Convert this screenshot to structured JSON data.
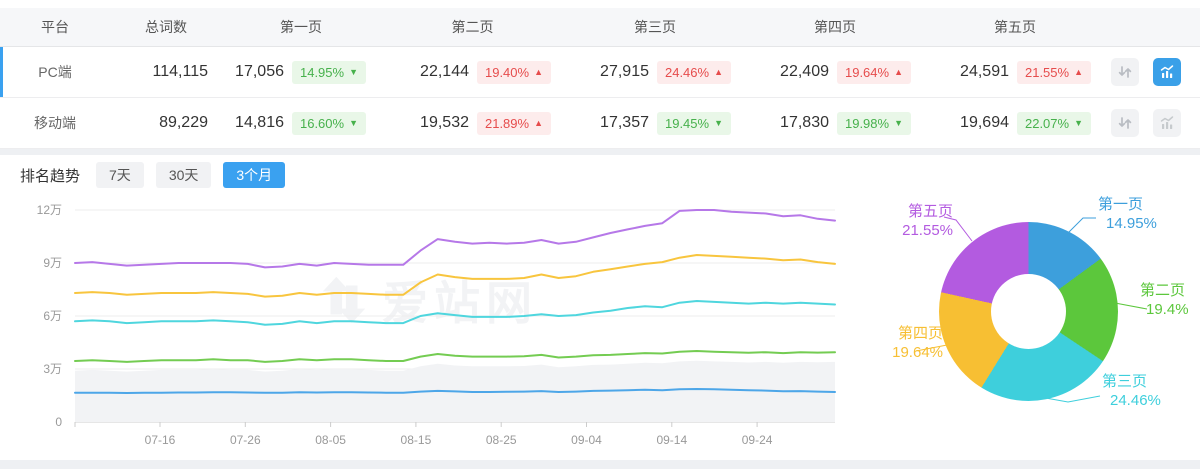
{
  "table": {
    "columns": [
      "平台",
      "总词数",
      "第一页",
      "第二页",
      "第三页",
      "第四页",
      "第五页"
    ],
    "rows": [
      {
        "platform": "PC端",
        "total": "114,115",
        "selected": true,
        "chart_active": true,
        "pages": [
          {
            "count": "17,056",
            "pct": "14.95%",
            "dir": "down"
          },
          {
            "count": "22,144",
            "pct": "19.40%",
            "dir": "up"
          },
          {
            "count": "27,915",
            "pct": "24.46%",
            "dir": "up"
          },
          {
            "count": "22,409",
            "pct": "19.64%",
            "dir": "up"
          },
          {
            "count": "24,591",
            "pct": "21.55%",
            "dir": "up"
          }
        ]
      },
      {
        "platform": "移动端",
        "total": "89,229",
        "selected": false,
        "chart_active": false,
        "pages": [
          {
            "count": "14,816",
            "pct": "16.60%",
            "dir": "down"
          },
          {
            "count": "19,532",
            "pct": "21.89%",
            "dir": "up"
          },
          {
            "count": "17,357",
            "pct": "19.45%",
            "dir": "down"
          },
          {
            "count": "17,830",
            "pct": "19.98%",
            "dir": "down"
          },
          {
            "count": "19,694",
            "pct": "22.07%",
            "dir": "down"
          }
        ]
      }
    ]
  },
  "trend": {
    "label": "排名趋势",
    "tabs": [
      {
        "label": "7天",
        "active": false
      },
      {
        "label": "30天",
        "active": false
      },
      {
        "label": "3个月",
        "active": true
      }
    ]
  },
  "watermark": {
    "text": "爱站网"
  },
  "colors": {
    "accent_blue": "#3aa1f0",
    "badge_up_red": "#e64c4c",
    "badge_down_green": "#47b14c",
    "grid_line": "#ededed",
    "axis_line": "#cccccc",
    "band_fill": "#f2f3f5"
  },
  "chart_data": [
    {
      "type": "line",
      "title": "排名趋势 3个月",
      "x_tick_labels": [
        "07-16",
        "07-26",
        "08-05",
        "08-15",
        "08-25",
        "09-04",
        "09-14",
        "09-24"
      ],
      "y_ticks": [
        {
          "value": 0,
          "label": "0"
        },
        {
          "value": 3,
          "label": "3万"
        },
        {
          "value": 6,
          "label": "6万"
        },
        {
          "value": 9,
          "label": "9万"
        },
        {
          "value": 12,
          "label": "12万"
        }
      ],
      "unit": "万",
      "ylim": [
        0,
        12
      ],
      "grid": true,
      "legend": "none shown",
      "series": [
        {
          "name": "shaded-band",
          "color": "#f2f3f5",
          "fill": true,
          "values": [
            2.9,
            2.95,
            2.9,
            2.85,
            2.9,
            2.95,
            2.95,
            2.95,
            3.0,
            2.95,
            2.95,
            2.85,
            2.9,
            3.0,
            2.95,
            3.0,
            3.0,
            2.95,
            2.9,
            2.9,
            3.15,
            3.3,
            3.2,
            3.15,
            3.15,
            3.15,
            3.17,
            3.25,
            3.1,
            3.15,
            3.23,
            3.25,
            3.3,
            3.35,
            3.33,
            3.43,
            3.47,
            3.43,
            3.4,
            3.37,
            3.4,
            3.35,
            3.4,
            3.38,
            3.4
          ]
        },
        {
          "name": "line-blue",
          "color": "#4da6e8",
          "fill": false,
          "values": [
            1.65,
            1.66,
            1.65,
            1.64,
            1.65,
            1.66,
            1.67,
            1.67,
            1.68,
            1.68,
            1.67,
            1.65,
            1.66,
            1.68,
            1.67,
            1.68,
            1.68,
            1.67,
            1.66,
            1.66,
            1.72,
            1.76,
            1.73,
            1.7,
            1.7,
            1.71,
            1.72,
            1.75,
            1.7,
            1.72,
            1.76,
            1.78,
            1.8,
            1.82,
            1.8,
            1.85,
            1.87,
            1.85,
            1.83,
            1.8,
            1.78,
            1.74,
            1.75,
            1.72,
            1.7
          ]
        },
        {
          "name": "line-green",
          "color": "#74cc52",
          "fill": false,
          "values": [
            3.45,
            3.5,
            3.45,
            3.4,
            3.45,
            3.5,
            3.5,
            3.5,
            3.55,
            3.5,
            3.5,
            3.4,
            3.45,
            3.55,
            3.5,
            3.55,
            3.55,
            3.5,
            3.45,
            3.45,
            3.7,
            3.85,
            3.75,
            3.7,
            3.7,
            3.7,
            3.72,
            3.8,
            3.65,
            3.7,
            3.78,
            3.8,
            3.85,
            3.9,
            3.88,
            3.98,
            4.02,
            3.98,
            3.95,
            3.92,
            3.95,
            3.9,
            3.95,
            3.93,
            3.95
          ]
        },
        {
          "name": "line-cyan",
          "color": "#4fd6de",
          "fill": false,
          "values": [
            5.7,
            5.75,
            5.7,
            5.6,
            5.65,
            5.7,
            5.7,
            5.7,
            5.75,
            5.7,
            5.65,
            5.5,
            5.55,
            5.7,
            5.6,
            5.7,
            5.7,
            5.65,
            5.6,
            5.6,
            6.0,
            6.15,
            6.05,
            5.95,
            5.95,
            5.95,
            6.0,
            6.1,
            6.0,
            6.05,
            6.2,
            6.3,
            6.45,
            6.55,
            6.5,
            6.75,
            6.85,
            6.8,
            6.75,
            6.7,
            6.75,
            6.7,
            6.75,
            6.7,
            6.65
          ]
        },
        {
          "name": "line-yellow",
          "color": "#f8c53e",
          "fill": false,
          "values": [
            7.3,
            7.35,
            7.3,
            7.2,
            7.25,
            7.3,
            7.3,
            7.3,
            7.35,
            7.3,
            7.25,
            7.1,
            7.15,
            7.3,
            7.2,
            7.3,
            7.3,
            7.25,
            7.2,
            7.2,
            7.9,
            8.35,
            8.2,
            8.1,
            8.1,
            8.1,
            8.15,
            8.35,
            8.15,
            8.25,
            8.5,
            8.65,
            8.8,
            8.95,
            9.05,
            9.3,
            9.45,
            9.4,
            9.35,
            9.3,
            9.25,
            9.15,
            9.2,
            9.05,
            8.95
          ]
        },
        {
          "name": "line-purple",
          "color": "#b678e8",
          "fill": false,
          "values": [
            9.0,
            9.05,
            8.95,
            8.85,
            8.9,
            8.95,
            9.0,
            9.0,
            9.0,
            9.0,
            8.95,
            8.75,
            8.8,
            8.95,
            8.85,
            9.0,
            8.95,
            8.9,
            8.9,
            8.9,
            9.7,
            10.35,
            10.2,
            10.1,
            10.15,
            10.1,
            10.15,
            10.3,
            10.1,
            10.2,
            10.45,
            10.7,
            10.9,
            11.1,
            11.25,
            11.95,
            12.0,
            12.0,
            11.9,
            11.85,
            11.8,
            11.65,
            11.7,
            11.5,
            11.4
          ]
        }
      ]
    },
    {
      "type": "pie",
      "donut": true,
      "slices": [
        {
          "label": "第一页",
          "value": 14.95,
          "pct_label": "14.95%",
          "color": "#3d9fdc"
        },
        {
          "label": "第二页",
          "value": 19.4,
          "pct_label": "19.4%",
          "color": "#5cc73c"
        },
        {
          "label": "第三页",
          "value": 24.46,
          "pct_label": "24.46%",
          "color": "#3ecfdc"
        },
        {
          "label": "第四页",
          "value": 19.64,
          "pct_label": "19.64%",
          "color": "#f7bf33"
        },
        {
          "label": "第五页",
          "value": 21.55,
          "pct_label": "21.55%",
          "color": "#b35be0"
        }
      ]
    }
  ]
}
